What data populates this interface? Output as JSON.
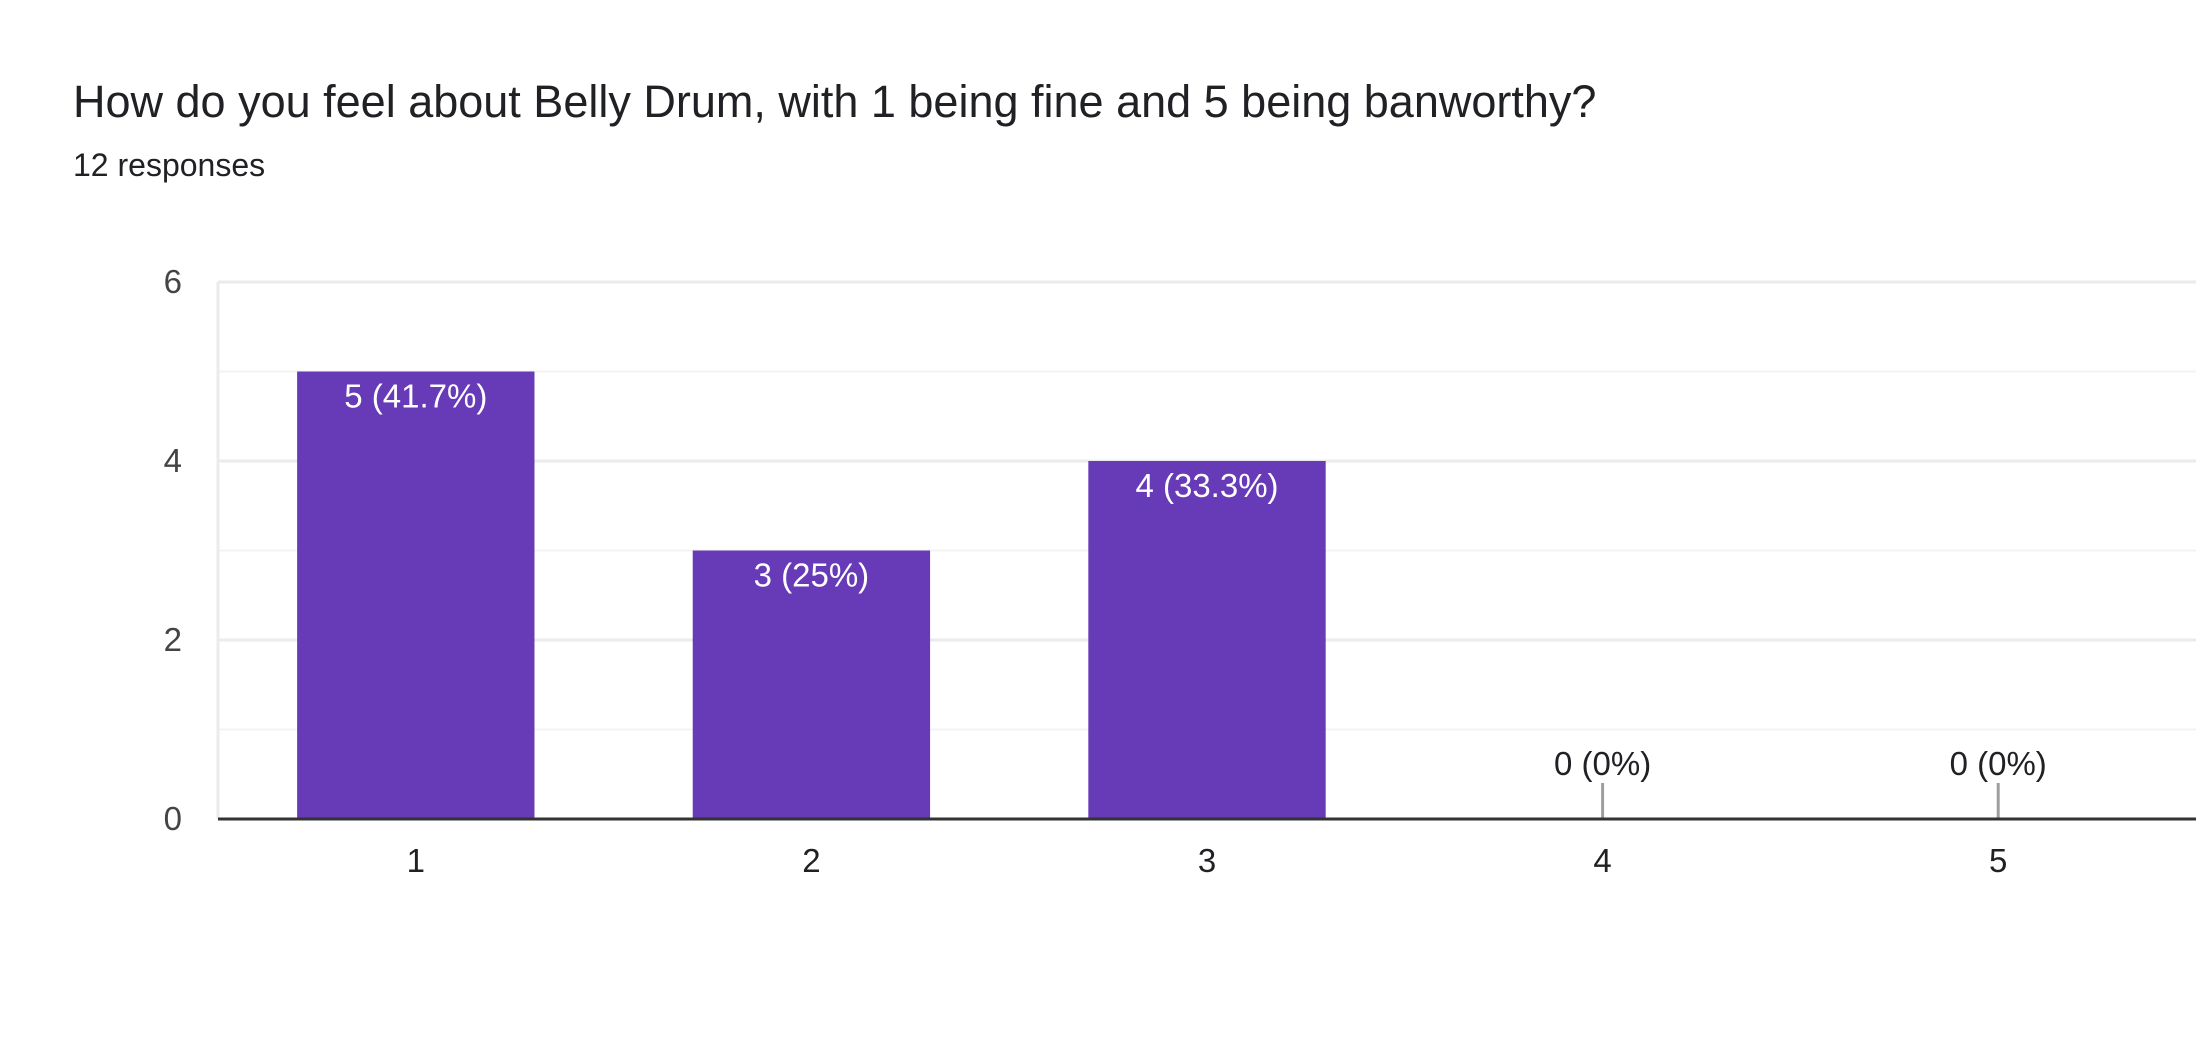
{
  "header": {
    "question": "How do you feel about Belly Drum, with 1 being fine and 5 being banworthy?",
    "responses": "12 responses"
  },
  "colors": {
    "bar": "#673ab7",
    "grid": "#ebebeb",
    "axis": "#333333",
    "text": "#202124",
    "tick": "#444444",
    "bar_label": "#ffffff",
    "zero_marker": "#9e9e9e"
  },
  "chart_data": {
    "type": "bar",
    "title": "How do you feel about Belly Drum, with 1 being fine and 5 being banworthy?",
    "subtitle": "12 responses",
    "categories": [
      "1",
      "2",
      "3",
      "4",
      "5"
    ],
    "values": [
      5,
      3,
      4,
      0,
      0
    ],
    "data_labels": [
      "5 (41.7%)",
      "3 (25%)",
      "4 (33.3%)",
      "0 (0%)",
      "0 (0%)"
    ],
    "y_ticks": [
      0,
      2,
      4,
      6
    ],
    "ylim": [
      0,
      6
    ],
    "xlabel": "",
    "ylabel": "",
    "grid": true,
    "legend": "none"
  }
}
